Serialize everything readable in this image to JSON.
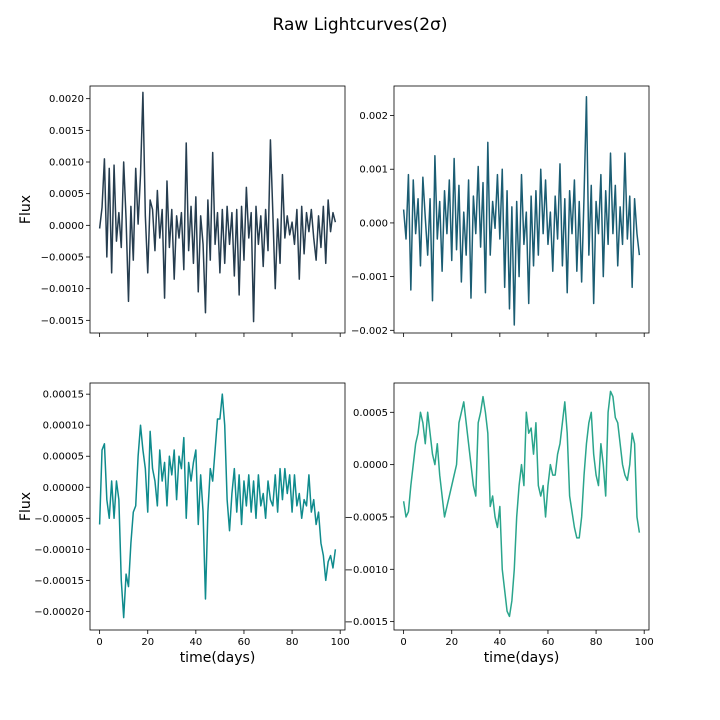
{
  "figure": {
    "title": "Raw Lightcurves(2σ)"
  },
  "chart_data": [
    {
      "type": "line",
      "title": "",
      "xlabel": "",
      "ylabel": "Flux",
      "xlim": [
        -4,
        102
      ],
      "ylim": [
        -0.0017,
        0.0022
      ],
      "yticks": [
        -0.0015,
        -0.001,
        -0.0005,
        0.0,
        0.0005,
        0.001,
        0.0015,
        0.002
      ],
      "ytick_labels": [
        "−0.0015",
        "−0.0010",
        "−0.0005",
        "0.0000",
        "0.0005",
        "0.0010",
        "0.0015",
        "0.0020"
      ],
      "xticks": [
        0,
        20,
        40,
        60,
        80,
        100
      ],
      "xtick_labels": [
        "",
        "",
        "",
        "",
        "",
        ""
      ],
      "grid": false,
      "series": [
        {
          "color": "#263d4f",
          "x": [
            0,
            1,
            2,
            3,
            4,
            5,
            6,
            7,
            8,
            9,
            10,
            11,
            12,
            13,
            14,
            15,
            16,
            17,
            18,
            19,
            20,
            21,
            22,
            23,
            24,
            25,
            26,
            27,
            28,
            29,
            30,
            31,
            32,
            33,
            34,
            35,
            36,
            37,
            38,
            39,
            40,
            41,
            42,
            43,
            44,
            45,
            46,
            47,
            48,
            49,
            50,
            51,
            52,
            53,
            54,
            55,
            56,
            57,
            58,
            59,
            60,
            61,
            62,
            63,
            64,
            65,
            66,
            67,
            68,
            69,
            70,
            71,
            72,
            73,
            74,
            75,
            76,
            77,
            78,
            79,
            80,
            81,
            82,
            83,
            84,
            85,
            86,
            87,
            88,
            89,
            90,
            91,
            92,
            93,
            94,
            95,
            96,
            97,
            98
          ],
          "y": [
            -5e-05,
            0.00028,
            0.00105,
            -0.0005,
            0.0009,
            -0.00075,
            0.00095,
            -0.00025,
            0.0002,
            -0.00035,
            0.001,
            0.0001,
            -0.0012,
            0.0003,
            -0.00055,
            0.0009,
            2e-05,
            0.0008,
            0.0021,
            0.00015,
            -0.00075,
            0.0004,
            0.00025,
            -0.0004,
            0.00055,
            -0.0002,
            0.00025,
            -0.00115,
            0.0007,
            -0.00035,
            0.00025,
            -0.00085,
            0.00015,
            -0.0002,
            0.0002,
            -0.0007,
            0.0013,
            -0.0004,
            0.0003,
            -0.0006,
            0.00045,
            -0.00105,
            0.00015,
            -0.0003,
            -0.00138,
            0.0004,
            -0.00055,
            0.00115,
            -0.0003,
            0.0002,
            -0.00075,
            0.00025,
            -0.0006,
            0.0003,
            -0.0003,
            0.0002,
            -0.0008,
            0.00025,
            -0.0011,
            0.0003,
            -0.00055,
            0.0006,
            -0.0002,
            0.0002,
            -0.00152,
            0.0003,
            -0.0003,
            0.00015,
            -0.00065,
            0.00025,
            -0.0004,
            0.00135,
            0.0002,
            -0.001,
            0.0001,
            -0.0006,
            0.0008,
            -0.0002,
            0.00015,
            -0.00015,
            5e-05,
            -0.0003,
            0.00025,
            -0.00085,
            0.0003,
            -0.00045,
            0.0002,
            -0.0001,
            0.00025,
            -0.0002,
            -0.00055,
            0.00015,
            -0.00035,
            0.0003,
            -0.0006,
            0.0004,
            -0.0001,
            0.0002,
            5e-05
          ]
        }
      ]
    },
    {
      "type": "line",
      "title": "",
      "xlabel": "",
      "ylabel": "",
      "xlim": [
        -4,
        102
      ],
      "ylim": [
        -0.00205,
        0.00255
      ],
      "yticks": [
        -0.002,
        -0.001,
        0.0,
        0.001,
        0.002
      ],
      "ytick_labels": [
        "−0.002",
        "−0.001",
        "0.000",
        "0.001",
        "0.002"
      ],
      "xticks": [
        0,
        20,
        40,
        60,
        80,
        100
      ],
      "xtick_labels": [
        "",
        "",
        "",
        "",
        "",
        ""
      ],
      "grid": false,
      "series": [
        {
          "color": "#1b5d73",
          "x": [
            0,
            1,
            2,
            3,
            4,
            5,
            6,
            7,
            8,
            9,
            10,
            11,
            12,
            13,
            14,
            15,
            16,
            17,
            18,
            19,
            20,
            21,
            22,
            23,
            24,
            25,
            26,
            27,
            28,
            29,
            30,
            31,
            32,
            33,
            34,
            35,
            36,
            37,
            38,
            39,
            40,
            41,
            42,
            43,
            44,
            45,
            46,
            47,
            48,
            49,
            50,
            51,
            52,
            53,
            54,
            55,
            56,
            57,
            58,
            59,
            60,
            61,
            62,
            63,
            64,
            65,
            66,
            67,
            68,
            69,
            70,
            71,
            72,
            73,
            74,
            75,
            76,
            77,
            78,
            79,
            80,
            81,
            82,
            83,
            84,
            85,
            86,
            87,
            88,
            89,
            90,
            91,
            92,
            93,
            94,
            95,
            96,
            97,
            98
          ],
          "y": [
            0.00025,
            -0.0003,
            0.0009,
            -0.00125,
            0.0008,
            -0.0002,
            0.00045,
            -0.0008,
            0.00085,
            0.0001,
            -0.0006,
            0.00045,
            -0.00145,
            0.00125,
            -0.0003,
            0.0004,
            -0.0009,
            0.0006,
            -0.0002,
            0.0008,
            -0.0007,
            0.0012,
            -0.0005,
            0.0007,
            -0.0011,
            0.0002,
            -0.0006,
            0.0008,
            -0.0014,
            0.0005,
            -0.0002,
            0.00105,
            -0.00045,
            0.00075,
            -0.0013,
            0.0015,
            -0.0006,
            0.0004,
            -0.0001,
            0.0009,
            -0.0003,
            0.001,
            -0.0012,
            0.0006,
            -0.0016,
            0.0003,
            -0.0019,
            0.0004,
            -0.001,
            0.0009,
            -0.0004,
            0.0002,
            -0.0015,
            0.0005,
            -0.0008,
            0.0006,
            -0.0006,
            0.001,
            -0.0002,
            0.0008,
            -0.0004,
            0.0002,
            -0.0009,
            0.0005,
            -0.0003,
            0.0011,
            -0.0008,
            0.00045,
            -0.0013,
            0.0006,
            -0.0002,
            0.0008,
            -0.0009,
            0.0004,
            -0.0011,
            0.0005,
            0.00235,
            -0.0006,
            0.0007,
            -0.0015,
            0.0004,
            -0.0002,
            0.0009,
            -0.001,
            0.0006,
            -0.0004,
            0.0013,
            -0.0002,
            0.0007,
            -0.0008,
            0.0003,
            -0.0004,
            0.0013,
            -0.0003,
            0.0005,
            -0.0012,
            0.00045,
            -0.0002,
            -0.0006
          ]
        }
      ]
    },
    {
      "type": "line",
      "title": "",
      "xlabel": "time(days)",
      "ylabel": "Flux",
      "xlim": [
        -4,
        102
      ],
      "ylim": [
        -0.00023,
        0.000168
      ],
      "yticks": [
        -0.0002,
        -0.00015,
        -0.0001,
        -5e-05,
        0.0,
        5e-05,
        0.0001,
        0.00015
      ],
      "ytick_labels": [
        "−0.00020",
        "−0.00015",
        "−0.00010",
        "−0.00005",
        "0.00000",
        "0.00005",
        "0.00010",
        "0.00015"
      ],
      "xticks": [
        0,
        20,
        40,
        60,
        80,
        100
      ],
      "xtick_labels": [
        "0",
        "20",
        "40",
        "60",
        "80",
        "100"
      ],
      "grid": false,
      "series": [
        {
          "color": "#0f8b8d",
          "x": [
            0,
            1,
            2,
            3,
            4,
            5,
            6,
            7,
            8,
            9,
            10,
            11,
            12,
            13,
            14,
            15,
            16,
            17,
            18,
            19,
            20,
            21,
            22,
            23,
            24,
            25,
            26,
            27,
            28,
            29,
            30,
            31,
            32,
            33,
            34,
            35,
            36,
            37,
            38,
            39,
            40,
            41,
            42,
            43,
            44,
            45,
            46,
            47,
            48,
            49,
            50,
            51,
            52,
            53,
            54,
            55,
            56,
            57,
            58,
            59,
            60,
            61,
            62,
            63,
            64,
            65,
            66,
            67,
            68,
            69,
            70,
            71,
            72,
            73,
            74,
            75,
            76,
            77,
            78,
            79,
            80,
            81,
            82,
            83,
            84,
            85,
            86,
            87,
            88,
            89,
            90,
            91,
            92,
            93,
            94,
            95,
            96,
            97,
            98
          ],
          "y": [
            -6e-05,
            6e-05,
            7e-05,
            -2e-05,
            -5e-05,
            1e-05,
            -5e-05,
            1e-05,
            -2e-05,
            -0.00015,
            -0.00021,
            -0.00014,
            -0.00016,
            -9e-05,
            -4e-05,
            -3e-05,
            5e-05,
            0.0001,
            6e-05,
            3e-05,
            -4e-05,
            9e-05,
            3e-05,
            1e-05,
            -3e-05,
            6e-05,
            1e-05,
            4e-05,
            -3e-05,
            5e-05,
            2e-05,
            6e-05,
            -2e-05,
            5e-05,
            3e-05,
            8e-05,
            -5e-05,
            4e-05,
            1e-05,
            4e-05,
            6e-05,
            -6e-05,
            2e-05,
            -4e-05,
            -0.00018,
            -4e-05,
            3e-05,
            1e-05,
            6e-05,
            0.00011,
            0.00011,
            0.00015,
            0.0001,
            -2e-05,
            -7e-05,
            -1e-05,
            3e-05,
            -4e-05,
            2e-05,
            -6e-05,
            1e-05,
            -3e-05,
            2e-05,
            -4e-05,
            1e-05,
            -5e-05,
            2e-05,
            -3e-05,
            -1e-05,
            -5e-05,
            1e-05,
            -2e-05,
            -3e-05,
            2e-05,
            -4e-05,
            3e-05,
            -2e-05,
            3e-05,
            -1e-05,
            2e-05,
            -4e-05,
            2e-05,
            -3e-05,
            -1e-05,
            -5e-05,
            -2e-05,
            -3e-05,
            2e-05,
            -4e-05,
            -2e-05,
            -6e-05,
            -4e-05,
            -9e-05,
            -0.00011,
            -0.00015,
            -0.00012,
            -0.00011,
            -0.00013,
            -0.0001
          ]
        }
      ]
    },
    {
      "type": "line",
      "title": "",
      "xlabel": "time(days)",
      "ylabel": "",
      "xlim": [
        -4,
        102
      ],
      "ylim": [
        -0.00158,
        0.00078
      ],
      "yticks": [
        -0.0015,
        -0.001,
        -0.0005,
        0.0,
        0.0005
      ],
      "ytick_labels": [
        "−0.0015",
        "−0.0010",
        "−0.0005",
        "0.0000",
        "0.0005"
      ],
      "xticks": [
        0,
        20,
        40,
        60,
        80,
        100
      ],
      "xtick_labels": [
        "0",
        "20",
        "40",
        "60",
        "80",
        "100"
      ],
      "grid": false,
      "series": [
        {
          "color": "#2aa58c",
          "x": [
            0,
            1,
            2,
            3,
            4,
            5,
            6,
            7,
            8,
            9,
            10,
            11,
            12,
            13,
            14,
            15,
            16,
            17,
            18,
            19,
            20,
            21,
            22,
            23,
            24,
            25,
            26,
            27,
            28,
            29,
            30,
            31,
            32,
            33,
            34,
            35,
            36,
            37,
            38,
            39,
            40,
            41,
            42,
            43,
            44,
            45,
            46,
            47,
            48,
            49,
            50,
            51,
            52,
            53,
            54,
            55,
            56,
            57,
            58,
            59,
            60,
            61,
            62,
            63,
            64,
            65,
            66,
            67,
            68,
            69,
            70,
            71,
            72,
            73,
            74,
            75,
            76,
            77,
            78,
            79,
            80,
            81,
            82,
            83,
            84,
            85,
            86,
            87,
            88,
            89,
            90,
            91,
            92,
            93,
            94,
            95,
            96,
            97,
            98
          ],
          "y": [
            -0.00035,
            -0.0005,
            -0.00045,
            -0.0002,
            0.0,
            0.0002,
            0.0003,
            0.0005,
            0.0004,
            0.0002,
            0.0005,
            0.0003,
            0.0001,
            0.0,
            0.0002,
            -0.0001,
            -0.0003,
            -0.0005,
            -0.0004,
            -0.0003,
            -0.0002,
            -0.0001,
            0.0,
            0.0004,
            0.0005,
            0.0006,
            0.0004,
            0.0002,
            0.0,
            -0.0002,
            -0.0003,
            0.0004,
            0.0005,
            0.00065,
            0.0005,
            0.0003,
            -0.0004,
            -0.0003,
            -0.0005,
            -0.0006,
            -0.0004,
            -0.001,
            -0.0012,
            -0.0014,
            -0.00145,
            -0.0013,
            -0.001,
            -0.0005,
            -0.0002,
            0.0,
            -0.0002,
            0.0005,
            0.0003,
            0.00035,
            0.0001,
            0.0004,
            -0.0002,
            -0.0003,
            -0.0002,
            -0.0005,
            -0.0002,
            0.0,
            -0.0001,
            -0.0001,
            0.0001,
            0.0002,
            0.0004,
            0.0006,
            0.0003,
            -0.0003,
            -0.00045,
            -0.0006,
            -0.0007,
            -0.0007,
            -0.0005,
            -0.0001,
            0.0002,
            0.0004,
            0.0005,
            0.0001,
            -0.0001,
            -0.0002,
            0.0002,
            0.0,
            -0.0003,
            0.0005,
            0.0007,
            0.00065,
            0.00045,
            0.0004,
            0.0002,
            0.0,
            -0.0001,
            -0.00015,
            0.0,
            0.0003,
            0.0002,
            -0.0005,
            -0.00065
          ]
        }
      ]
    }
  ]
}
